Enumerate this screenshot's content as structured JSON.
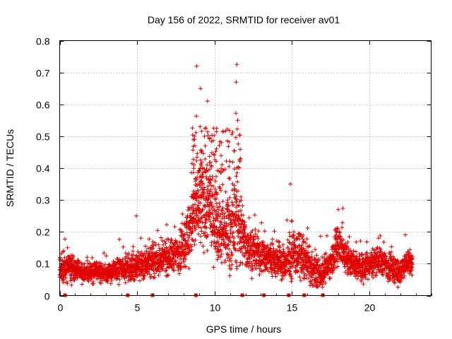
{
  "chart_data": {
    "type": "scatter",
    "title": "Day 156 of 2022, SRMTID for receiver av01",
    "xlabel": "GPS time / hours",
    "ylabel": "SRMTID / TECUs",
    "xlim": [
      0,
      24
    ],
    "ylim": [
      0,
      0.8
    ],
    "x_ticks": [
      0,
      5,
      10,
      15,
      20
    ],
    "x_tick_labels": [
      "0",
      "5",
      "10",
      "15",
      "20"
    ],
    "y_ticks": [
      0,
      0.1,
      0.2,
      0.3,
      0.4,
      0.5,
      0.6,
      0.7,
      0.8
    ],
    "y_tick_labels": [
      "0",
      "0.1",
      "0.2",
      "0.3",
      "0.4",
      "0.5",
      "0.6",
      "0.7",
      "0.8"
    ],
    "grid": true,
    "marker": "+",
    "color": "#e00000",
    "series_name": "SRMTID",
    "data_end_hour": 22.8,
    "notable_points": [
      {
        "x": 8.85,
        "y": 0.72
      },
      {
        "x": 11.45,
        "y": 0.725
      },
      {
        "x": 11.4,
        "y": 0.67
      },
      {
        "x": 9.1,
        "y": 0.65
      },
      {
        "x": 9.55,
        "y": 0.61
      },
      {
        "x": 11.5,
        "y": 0.55
      },
      {
        "x": 14.9,
        "y": 0.35
      },
      {
        "x": 4.95,
        "y": 0.25
      },
      {
        "x": 18.0,
        "y": 0.27
      }
    ],
    "envelope": [
      [
        0.0,
        0.09,
        0.03
      ],
      [
        0.5,
        0.09,
        0.035
      ],
      [
        1.0,
        0.08,
        0.025
      ],
      [
        1.5,
        0.07,
        0.02
      ],
      [
        2.0,
        0.07,
        0.02
      ],
      [
        2.5,
        0.075,
        0.02
      ],
      [
        3.0,
        0.07,
        0.02
      ],
      [
        3.5,
        0.075,
        0.02
      ],
      [
        4.0,
        0.09,
        0.03
      ],
      [
        4.5,
        0.085,
        0.025
      ],
      [
        5.0,
        0.09,
        0.03
      ],
      [
        5.5,
        0.1,
        0.035
      ],
      [
        6.0,
        0.11,
        0.035
      ],
      [
        6.5,
        0.11,
        0.035
      ],
      [
        7.0,
        0.12,
        0.035
      ],
      [
        7.5,
        0.13,
        0.04
      ],
      [
        8.0,
        0.16,
        0.05
      ],
      [
        8.5,
        0.22,
        0.08
      ],
      [
        9.0,
        0.3,
        0.1
      ],
      [
        9.5,
        0.28,
        0.1
      ],
      [
        10.0,
        0.24,
        0.08
      ],
      [
        10.5,
        0.2,
        0.07
      ],
      [
        11.0,
        0.2,
        0.08
      ],
      [
        11.5,
        0.24,
        0.1
      ],
      [
        12.0,
        0.16,
        0.05
      ],
      [
        12.5,
        0.14,
        0.045
      ],
      [
        13.0,
        0.13,
        0.04
      ],
      [
        13.5,
        0.12,
        0.04
      ],
      [
        14.0,
        0.11,
        0.035
      ],
      [
        14.5,
        0.1,
        0.035
      ],
      [
        15.0,
        0.12,
        0.05
      ],
      [
        15.5,
        0.13,
        0.05
      ],
      [
        16.0,
        0.1,
        0.04
      ],
      [
        16.5,
        0.07,
        0.03
      ],
      [
        17.0,
        0.07,
        0.03
      ],
      [
        17.5,
        0.1,
        0.03
      ],
      [
        18.0,
        0.17,
        0.05
      ],
      [
        18.5,
        0.12,
        0.04
      ],
      [
        19.0,
        0.1,
        0.03
      ],
      [
        19.5,
        0.09,
        0.03
      ],
      [
        20.0,
        0.1,
        0.03
      ],
      [
        20.5,
        0.11,
        0.03
      ],
      [
        21.0,
        0.1,
        0.03
      ],
      [
        21.5,
        0.09,
        0.03
      ],
      [
        22.0,
        0.07,
        0.03
      ],
      [
        22.5,
        0.11,
        0.03
      ],
      [
        22.8,
        0.09,
        0.02
      ]
    ],
    "zero_markers": [
      0.35,
      4.4,
      6.0,
      8.8,
      11.8,
      13.2,
      14.8,
      15.8,
      17.0
    ]
  }
}
